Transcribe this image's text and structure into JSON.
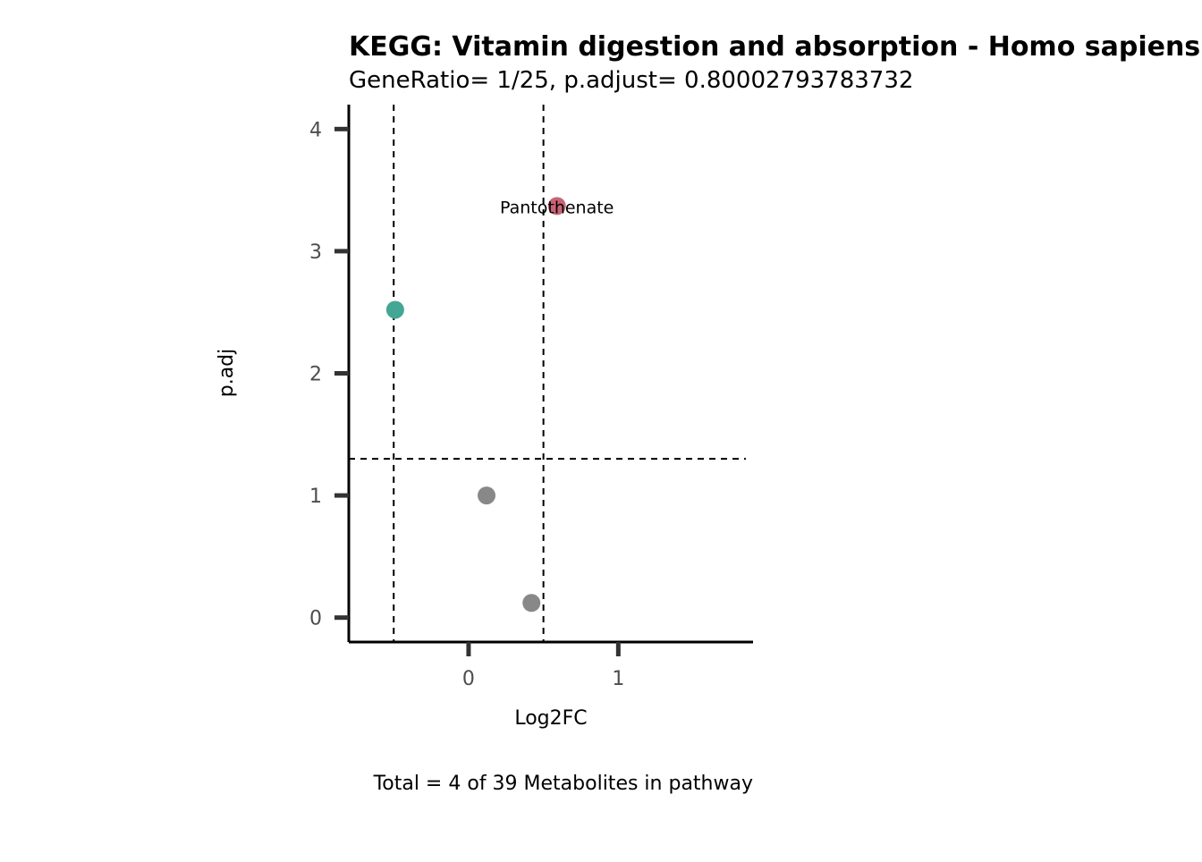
{
  "chart_data": {
    "type": "scatter",
    "title": "KEGG: Vitamin digestion and absorption - Homo sapiens (human)",
    "subtitle": "GeneRatio= 1/25, p.adjust= 0.80002793783732",
    "xlabel": "Log2FC",
    "ylabel": "p.adj",
    "caption": "Total = 4 of 39 Metabolites in pathway",
    "xlim": [
      -0.8,
      1.9
    ],
    "ylim": [
      -0.2,
      4.2
    ],
    "x_ticks": [
      0,
      1
    ],
    "y_ticks": [
      0,
      1,
      2,
      3,
      4
    ],
    "vlines": [
      -0.5,
      0.5
    ],
    "hline": 1.3,
    "points": [
      {
        "x": 0.59,
        "y": 3.37,
        "label": "Pantothenate",
        "color": "#c86478"
      },
      {
        "x": -0.49,
        "y": 2.52,
        "label": "",
        "color": "#44a694"
      },
      {
        "x": 0.12,
        "y": 1.0,
        "label": "",
        "color": "#888888"
      },
      {
        "x": 0.42,
        "y": 0.12,
        "label": "",
        "color": "#888888"
      }
    ],
    "grid": false,
    "legend": "none"
  }
}
